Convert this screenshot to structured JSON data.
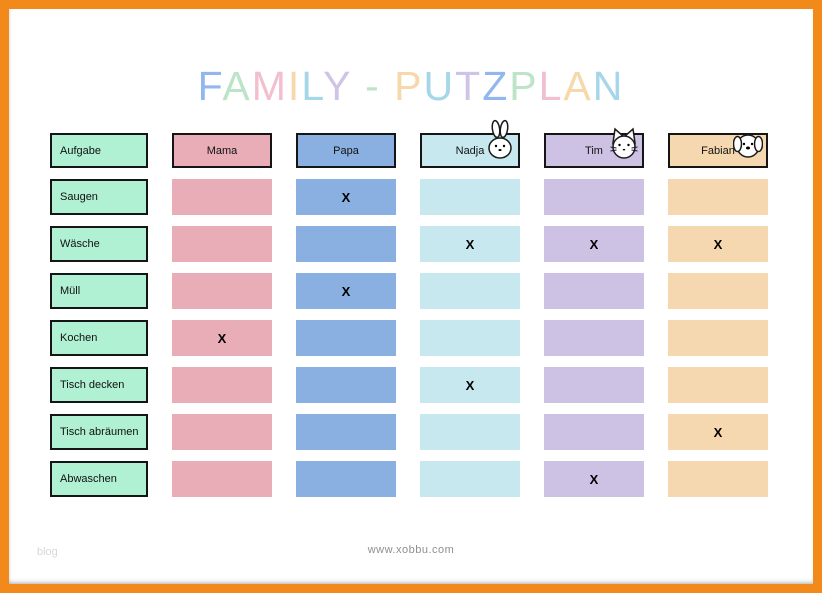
{
  "page": {
    "title": "FAMILY - PUTZPLAN",
    "footer": {
      "url": "www.xobbu.com",
      "watermark": "blog"
    }
  },
  "colors": {
    "frame": "#f28a1b",
    "task": "#b0f0d3",
    "title_palette": [
      "#92b7ee",
      "#bde4c8",
      "#f1bfcd",
      "#f6d8ab",
      "#a5d6e9",
      "#cfc3e8"
    ]
  },
  "table": {
    "task_header": "Aufgabe",
    "columns": [
      {
        "name": "Mama",
        "color": "#e8adb7",
        "icon": ""
      },
      {
        "name": "Papa",
        "color": "#89b0e0",
        "icon": ""
      },
      {
        "name": "Nadja",
        "color": "#c6e8ee",
        "icon": "bunny"
      },
      {
        "name": "Tim",
        "color": "#cdc2e3",
        "icon": "cat"
      },
      {
        "name": "Fabian",
        "color": "#f6d8b0",
        "icon": "dog"
      }
    ],
    "rows": [
      {
        "task": "Saugen",
        "marks": [
          "",
          "X",
          "",
          "",
          ""
        ]
      },
      {
        "task": "Wäsche",
        "marks": [
          "",
          "",
          "X",
          "X",
          "X"
        ]
      },
      {
        "task": "Müll",
        "marks": [
          "",
          "X",
          "",
          "",
          ""
        ]
      },
      {
        "task": "Kochen",
        "marks": [
          "X",
          "",
          "",
          "",
          ""
        ]
      },
      {
        "task": "Tisch decken",
        "marks": [
          "",
          "",
          "X",
          "",
          ""
        ]
      },
      {
        "task": "Tisch abräumen",
        "marks": [
          "",
          "",
          "",
          "",
          "X"
        ]
      },
      {
        "task": "Abwaschen",
        "marks": [
          "",
          "",
          "",
          "X",
          ""
        ]
      }
    ]
  }
}
